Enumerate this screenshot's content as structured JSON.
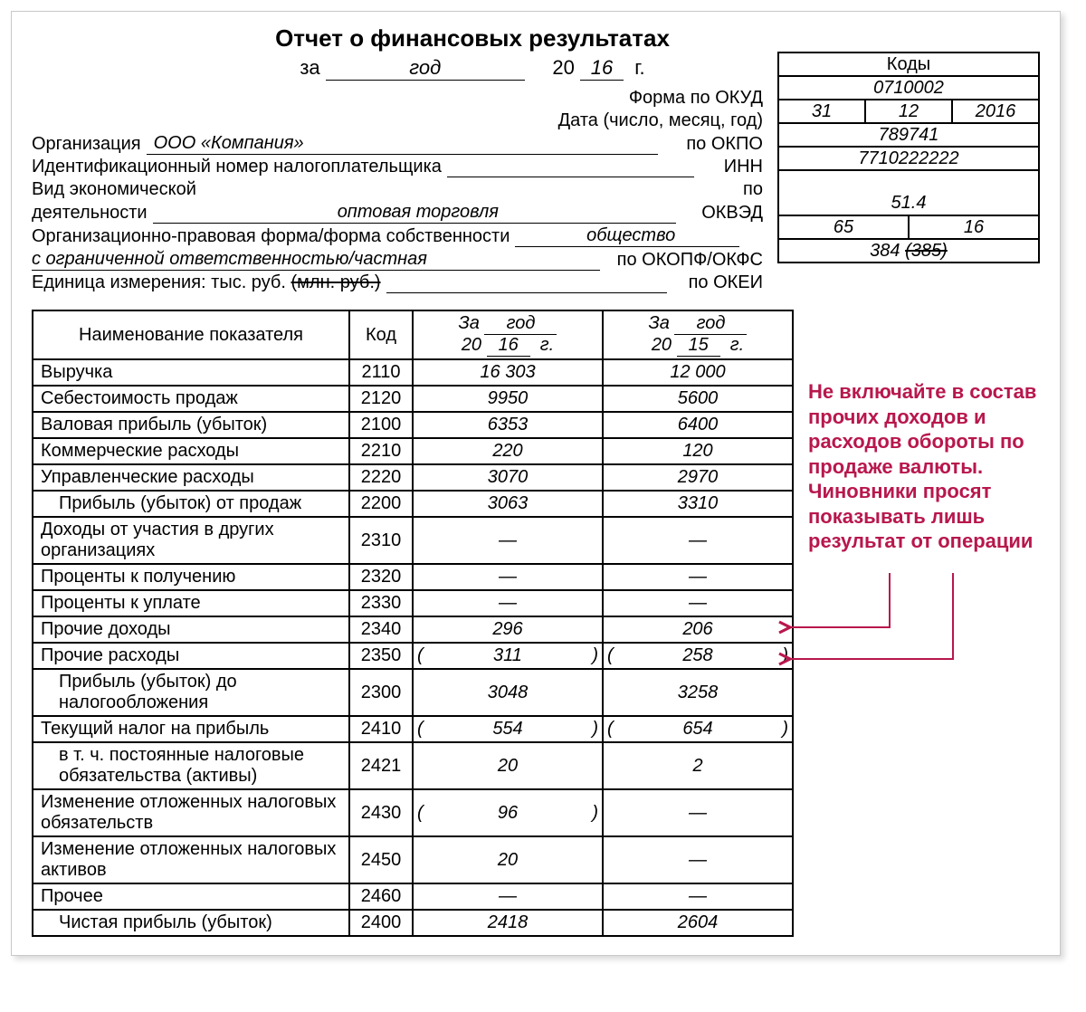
{
  "form": {
    "title": "Отчет о финансовых результатах",
    "period_prefix": "за",
    "period_word": "год",
    "century": "20",
    "year_short": "16",
    "year_suffix": "г."
  },
  "labels": {
    "codes_head": "Коды",
    "form_okud": "Форма по ОКУД",
    "date": "Дата (число, месяц, год)",
    "org": "Организация",
    "okpo": "по ОКПО",
    "inn_label": "Идентификационный номер налогоплательщика",
    "inn": "ИНН",
    "activity1": "Вид экономической",
    "activity2": "деятельности",
    "po": "по",
    "okved": "ОКВЭД",
    "legal1": "Организационно-правовая форма/форма собственности",
    "legal2": "с ограниченной ответственностью/частная",
    "okopf": "по ОКОПФ/ОКФС",
    "unit": "Единица измерения: тыс. руб.",
    "unit_strike": "(млн. руб.)",
    "okei": "по ОКЕИ"
  },
  "codes": {
    "okud": "0710002",
    "date_d": "31",
    "date_m": "12",
    "date_y": "2016",
    "okpo": "789741",
    "inn": "7710222222",
    "okved": "51.4",
    "okopf_l": "65",
    "okopf_r": "16",
    "okei": "384",
    "okei_strike": "(385)"
  },
  "fields": {
    "org": "ООО «Компания»",
    "activity": "оптовая торговля",
    "legal_form": "общество"
  },
  "table": {
    "head": {
      "name": "Наименование показателя",
      "code": "Код",
      "col_prefix": "За",
      "col_word": "год",
      "century": "20",
      "year1": "16",
      "year2": "15",
      "suffix": "г."
    },
    "rows": [
      {
        "name": "Выручка",
        "code": "2110",
        "v1": "16 303",
        "v2": "12 000"
      },
      {
        "name": "Себестоимость продаж",
        "code": "2120",
        "v1": "9950",
        "v2": "5600"
      },
      {
        "name": "Валовая прибыль (убыток)",
        "code": "2100",
        "v1": "6353",
        "v2": "6400"
      },
      {
        "name": "Коммерческие расходы",
        "code": "2210",
        "v1": "220",
        "v2": "120"
      },
      {
        "name": "Управленческие расходы",
        "code": "2220",
        "v1": "3070",
        "v2": "2970"
      },
      {
        "name": "Прибыль (убыток) от продаж",
        "indent": true,
        "code": "2200",
        "v1": "3063",
        "v2": "3310"
      },
      {
        "name": "Доходы от участия в других организациях",
        "code": "2310",
        "v1": "—",
        "v2": "—"
      },
      {
        "name": "Проценты к получению",
        "code": "2320",
        "v1": "—",
        "v2": "—"
      },
      {
        "name": "Проценты к уплате",
        "code": "2330",
        "v1": "—",
        "v2": "—"
      },
      {
        "name": "Прочие доходы",
        "code": "2340",
        "v1": "296",
        "v2": "206"
      },
      {
        "name": "Прочие расходы",
        "code": "2350",
        "v1": "311",
        "v2": "258",
        "paren": true
      },
      {
        "name": "Прибыль (убыток) до налогообложения",
        "indent": true,
        "code": "2300",
        "v1": "3048",
        "v2": "3258"
      },
      {
        "name": "Текущий налог на прибыль",
        "code": "2410",
        "v1": "554",
        "v2": "654",
        "paren": true
      },
      {
        "name": "в т. ч. постоянные налоговые обязательства (активы)",
        "indent": true,
        "code": "2421",
        "v1": "20",
        "v2": "2"
      },
      {
        "name": "Изменение отложенных налоговых обязательств",
        "code": "2430",
        "v1": "96",
        "v2": "—",
        "paren1": true
      },
      {
        "name": "Изменение отложенных налоговых активов",
        "code": "2450",
        "v1": "20",
        "v2": "—"
      },
      {
        "name": "Прочее",
        "code": "2460",
        "v1": "—",
        "v2": "—"
      },
      {
        "name": "Чистая прибыль (убыток)",
        "indent": true,
        "code": "2400",
        "v1": "2418",
        "v2": "2604"
      }
    ]
  },
  "note": {
    "text": "Не включайте в состав прочих доходов и расходов обороты по продаже валюты. Чиновники просят показывать лишь результат от операции",
    "color": "#b8174c"
  }
}
